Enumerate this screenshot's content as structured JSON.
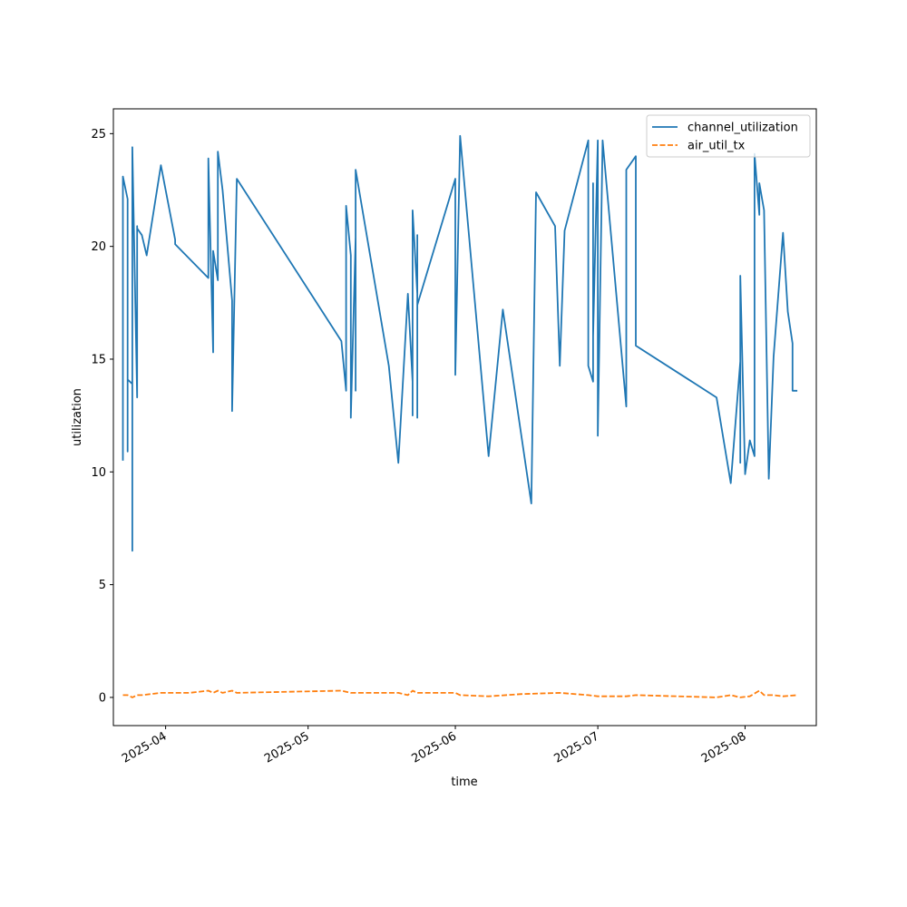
{
  "chart_data": {
    "type": "line",
    "xlabel": "time",
    "ylabel": "utilization",
    "xlim": [
      "2025-03-21",
      "2025-08-16"
    ],
    "ylim": [
      -1.25,
      26.1
    ],
    "yticks": [
      0,
      5,
      10,
      15,
      20,
      25
    ],
    "xticks": [
      "2025-04-01",
      "2025-05-01",
      "2025-06-01",
      "2025-07-01",
      "2025-08-01"
    ],
    "xtick_labels": [
      "2025-04",
      "2025-05",
      "2025-06",
      "2025-07",
      "2025-08"
    ],
    "grid": false,
    "legend_position": "top-right",
    "series": [
      {
        "name": "channel_utilization",
        "color": "#1f77b4",
        "dash": "solid",
        "x": [
          "2025-03-23",
          "2025-03-23",
          "2025-03-24",
          "2025-03-24",
          "2025-03-24",
          "2025-03-25",
          "2025-03-25",
          "2025-03-25",
          "2025-03-26",
          "2025-03-26",
          "2025-03-26",
          "2025-03-27",
          "2025-03-28",
          "2025-03-31",
          "2025-04-03",
          "2025-04-03",
          "2025-04-10",
          "2025-04-10",
          "2025-04-11",
          "2025-04-11",
          "2025-04-12",
          "2025-04-12",
          "2025-04-13",
          "2025-04-15",
          "2025-04-15",
          "2025-04-16",
          "2025-05-08",
          "2025-05-09",
          "2025-05-09",
          "2025-05-10",
          "2025-05-10",
          "2025-05-10",
          "2025-05-10",
          "2025-05-11",
          "2025-05-11",
          "2025-05-11",
          "2025-05-18",
          "2025-05-20",
          "2025-05-22",
          "2025-05-23",
          "2025-05-23",
          "2025-05-23",
          "2025-05-23",
          "2025-05-24",
          "2025-05-24",
          "2025-05-24",
          "2025-05-24",
          "2025-05-24",
          "2025-05-24",
          "2025-05-24",
          "2025-06-01",
          "2025-06-01",
          "2025-06-02",
          "2025-06-08",
          "2025-06-11",
          "2025-06-17",
          "2025-06-18",
          "2025-06-22",
          "2025-06-23",
          "2025-06-24",
          "2025-06-29",
          "2025-06-29",
          "2025-06-30",
          "2025-06-30",
          "2025-06-30",
          "2025-07-01",
          "2025-07-01",
          "2025-07-02",
          "2025-07-02",
          "2025-07-07",
          "2025-07-07",
          "2025-07-09",
          "2025-07-09",
          "2025-07-26",
          "2025-07-29",
          "2025-07-31",
          "2025-07-31",
          "2025-07-31",
          "2025-08-01",
          "2025-08-02",
          "2025-08-03",
          "2025-08-03",
          "2025-08-04",
          "2025-08-04",
          "2025-08-05",
          "2025-08-06",
          "2025-08-07",
          "2025-08-09",
          "2025-08-10",
          "2025-08-11",
          "2025-08-11",
          "2025-08-12",
          "2025-08-12"
        ],
        "y": [
          10.5,
          23.1,
          22.1,
          10.9,
          14.1,
          13.9,
          6.5,
          24.4,
          13.3,
          20.9,
          20.8,
          20.5,
          19.6,
          23.6,
          20.3,
          20.1,
          18.6,
          23.9,
          15.3,
          19.8,
          18.5,
          24.2,
          22.5,
          17.6,
          12.7,
          23.0,
          15.8,
          13.6,
          21.8,
          19.6,
          16.9,
          18.8,
          12.4,
          20.4,
          13.6,
          23.4,
          14.7,
          10.4,
          17.9,
          14.0,
          19.9,
          12.5,
          21.6,
          17.9,
          12.4,
          20.5,
          17.4,
          17.4,
          17.4,
          17.4,
          23.0,
          14.3,
          24.9,
          10.7,
          17.2,
          8.6,
          22.4,
          20.9,
          14.7,
          20.7,
          24.7,
          14.7,
          14.0,
          22.8,
          16.0,
          24.7,
          11.6,
          24.7,
          24.7,
          12.9,
          23.4,
          24.0,
          15.6,
          13.3,
          9.5,
          14.9,
          10.4,
          18.7,
          9.9,
          11.4,
          10.7,
          24.1,
          21.4,
          22.8,
          21.6,
          9.7,
          15.1,
          20.6,
          17.1,
          15.7,
          13.6,
          13.6,
          13.6
        ]
      },
      {
        "name": "air_util_tx",
        "color": "#ff7f0e",
        "dash": "dashed",
        "x": [
          "2025-03-23",
          "2025-03-24",
          "2025-03-25",
          "2025-03-26",
          "2025-03-27",
          "2025-03-31",
          "2025-04-03",
          "2025-04-06",
          "2025-04-10",
          "2025-04-11",
          "2025-04-12",
          "2025-04-13",
          "2025-04-15",
          "2025-04-16",
          "2025-05-08",
          "2025-05-10",
          "2025-05-12",
          "2025-05-20",
          "2025-05-22",
          "2025-05-23",
          "2025-05-24",
          "2025-06-01",
          "2025-06-02",
          "2025-06-08",
          "2025-06-15",
          "2025-06-23",
          "2025-06-29",
          "2025-07-01",
          "2025-07-02",
          "2025-07-07",
          "2025-07-09",
          "2025-07-26",
          "2025-07-29",
          "2025-07-31",
          "2025-08-02",
          "2025-08-04",
          "2025-08-05",
          "2025-08-07",
          "2025-08-09",
          "2025-08-12"
        ],
        "y": [
          0.1,
          0.1,
          0.0,
          0.1,
          0.1,
          0.2,
          0.2,
          0.2,
          0.3,
          0.2,
          0.3,
          0.2,
          0.3,
          0.2,
          0.3,
          0.2,
          0.2,
          0.2,
          0.1,
          0.3,
          0.2,
          0.2,
          0.1,
          0.05,
          0.15,
          0.2,
          0.1,
          0.05,
          0.05,
          0.05,
          0.1,
          0.0,
          0.1,
          0.0,
          0.05,
          0.3,
          0.1,
          0.1,
          0.05,
          0.1
        ]
      }
    ]
  }
}
